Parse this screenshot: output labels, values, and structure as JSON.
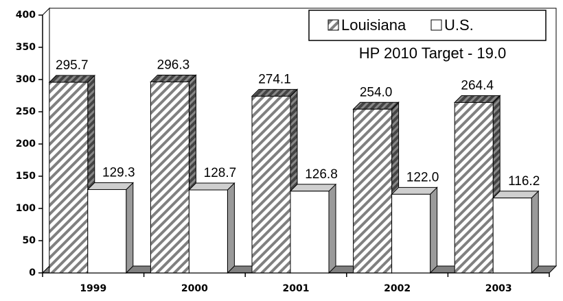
{
  "chart_data": {
    "type": "bar3d",
    "annotation": "HP 2010 Target - 19.0",
    "categories": [
      "1999",
      "2000",
      "2001",
      "2002",
      "2003"
    ],
    "series": [
      {
        "name": "Louisiana",
        "color": "#808080",
        "values": [
          295.7,
          296.3,
          274.1,
          254.0,
          264.4
        ],
        "value_labels": [
          "295.7",
          "296.3",
          "274.1",
          "254.0",
          "264.4"
        ]
      },
      {
        "name": "U.S.",
        "color": "#ffffff",
        "values": [
          129.3,
          128.7,
          126.8,
          122.0,
          116.2
        ],
        "value_labels": [
          "129.3",
          "128.7",
          "126.8",
          "122.0",
          "116.2"
        ]
      }
    ],
    "ylim": [
      0,
      400
    ],
    "yticks": [
      0,
      50,
      100,
      150,
      200,
      250,
      300,
      350,
      400
    ]
  }
}
